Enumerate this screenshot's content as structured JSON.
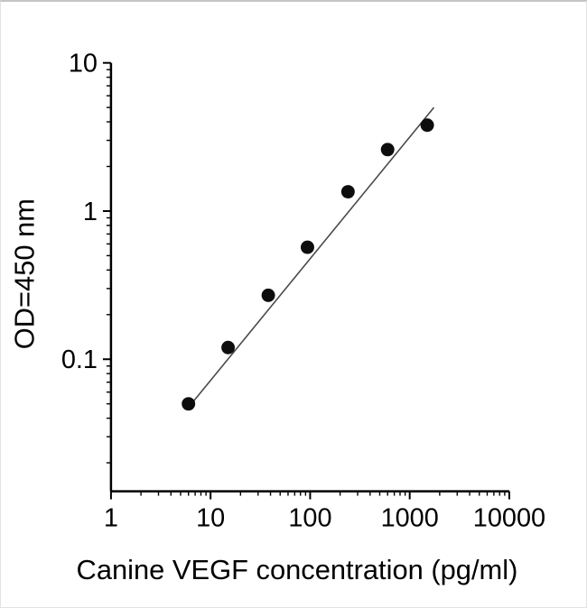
{
  "figure": {
    "background": "#ffffff",
    "frame_color": "#c4c4c4"
  },
  "chart_data": {
    "type": "scatter",
    "title": "",
    "xlabel": "Canine VEGF concentration (pg/ml)",
    "ylabel": "OD=450 nm",
    "x_scale": "log",
    "y_scale": "log",
    "xlim": [
      1,
      10000
    ],
    "ylim": [
      0.013,
      10
    ],
    "x_ticks": [
      1,
      10,
      100,
      1000,
      10000
    ],
    "x_tick_labels": [
      "1",
      "10",
      "100",
      "1000",
      "10000"
    ],
    "y_ticks": [
      10,
      1,
      0.1
    ],
    "y_tick_labels": [
      "10",
      "1",
      "0.1"
    ],
    "grid": false,
    "legend": false,
    "axis_color": "#000000",
    "series": [
      {
        "name": "fit-line",
        "type": "line",
        "color": "#4a4a4a",
        "points": [
          [
            5.8,
            0.046
          ],
          [
            1750,
            5.0
          ]
        ]
      },
      {
        "name": "standard-curve-points",
        "type": "scatter",
        "marker": "filled-circle",
        "color": "#0d0d0d",
        "points": [
          [
            6,
            0.05
          ],
          [
            15,
            0.12
          ],
          [
            38,
            0.27
          ],
          [
            94,
            0.57
          ],
          [
            240,
            1.35
          ],
          [
            600,
            2.6
          ],
          [
            1500,
            3.8
          ]
        ]
      }
    ]
  }
}
